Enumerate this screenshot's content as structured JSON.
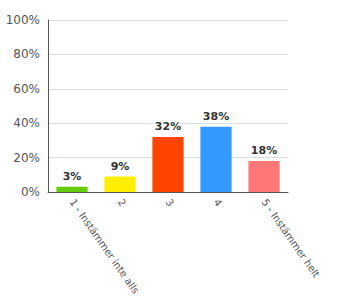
{
  "chart_data": {
    "type": "bar",
    "categories": [
      "1 - Instämmer inte alls",
      "2",
      "3",
      "4",
      "5 - Instämmer helt"
    ],
    "values": [
      3,
      9,
      32,
      38,
      18
    ],
    "value_labels": [
      "3%",
      "9%",
      "32%",
      "38%",
      "18%"
    ],
    "colors": [
      "#66cc00",
      "#ffee00",
      "#ff4400",
      "#3399ff",
      "#ff7777"
    ],
    "ylim": [
      0,
      100
    ],
    "yticks": [
      {
        "value": 0,
        "label": "0%"
      },
      {
        "value": 20,
        "label": "20%"
      },
      {
        "value": 40,
        "label": "40%"
      },
      {
        "value": 60,
        "label": "60%"
      },
      {
        "value": 80,
        "label": "80%"
      },
      {
        "value": 100,
        "label": "100%"
      }
    ],
    "grid": true,
    "data_labels": true
  }
}
